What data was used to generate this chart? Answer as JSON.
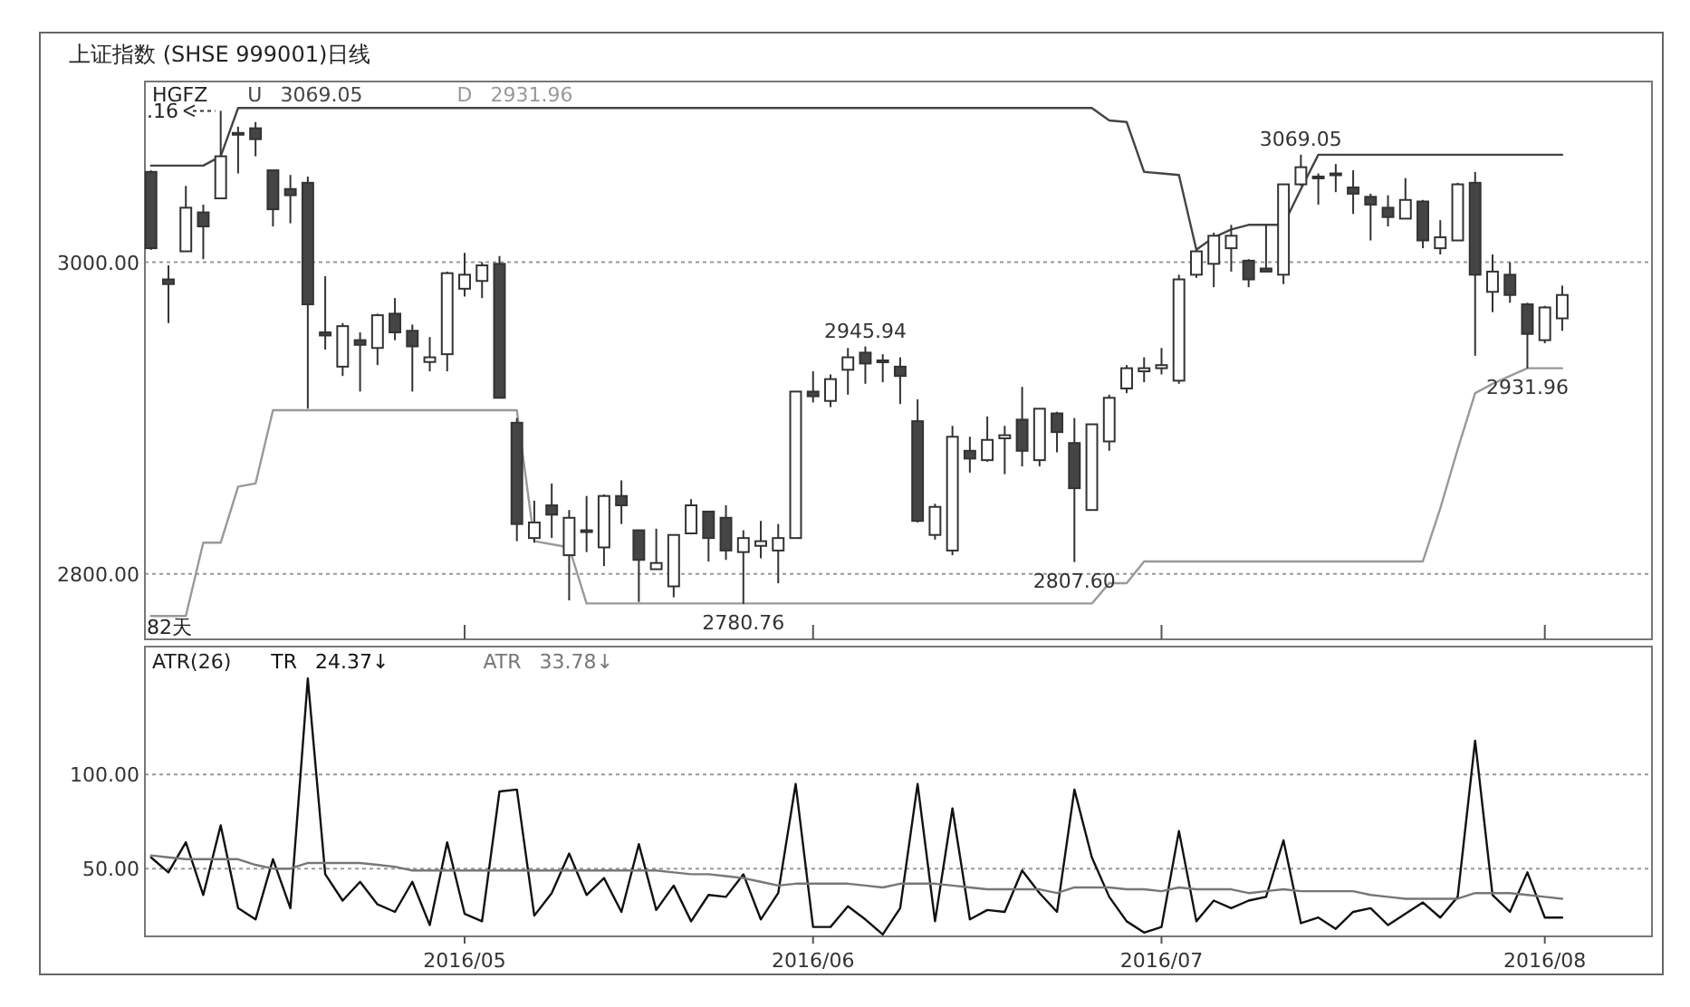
{
  "chart_data": [
    {
      "type": "candlestick",
      "title": "上证指数 (SHSE 999001)日线",
      "legend_title": "HGFZ",
      "legend": "top left",
      "grid": "y",
      "tick_labels": "y",
      "categories": [
        null,
        null,
        null,
        null,
        null,
        null,
        null,
        null,
        null,
        null,
        null,
        null,
        null,
        null,
        null,
        null,
        null,
        null,
        "2016/05",
        null,
        null,
        null,
        null,
        null,
        null,
        null,
        null,
        null,
        null,
        null,
        null,
        null,
        null,
        null,
        null,
        null,
        null,
        null,
        "2016/06",
        null,
        null,
        null,
        null,
        null,
        null,
        null,
        null,
        null,
        null,
        null,
        null,
        null,
        null,
        null,
        null,
        null,
        null,
        null,
        "2016/07",
        null,
        null,
        null,
        null,
        null,
        null,
        null,
        null,
        null,
        null,
        null,
        null,
        null,
        null,
        null,
        null,
        null,
        null,
        null,
        null,
        null,
        "2016/08",
        null
      ],
      "ylim": [
        2758,
        3116
      ],
      "yticks": [
        {
          "value": 3000,
          "label": "3000.00"
        },
        {
          "value": 2800,
          "label": "2800.00"
        }
      ],
      "ohlc": [
        [
          3058,
          3059,
          3008,
          3009
        ],
        [
          2989,
          2998,
          2961,
          2986
        ],
        [
          3007,
          3049,
          3007,
          3035
        ],
        [
          3032,
          3037,
          3002,
          3023
        ],
        [
          3041,
          3097.16,
          3041,
          3068
        ],
        [
          3083,
          3087,
          3057,
          3082
        ],
        [
          3086,
          3090,
          3068,
          3079
        ],
        [
          3059,
          3059,
          3023,
          3034
        ],
        [
          3047,
          3056,
          3025,
          3043
        ],
        [
          3051,
          3055,
          2906,
          2973
        ],
        [
          2955,
          2991,
          2944,
          2953
        ],
        [
          2933,
          2961,
          2927,
          2959
        ],
        [
          2950,
          2955,
          2917,
          2947
        ],
        [
          2945,
          2967,
          2934,
          2966
        ],
        [
          2967,
          2977,
          2950,
          2955
        ],
        [
          2956,
          2960,
          2917,
          2946
        ],
        [
          2936,
          2952,
          2930,
          2939
        ],
        [
          2941,
          2994,
          2930,
          2993
        ],
        [
          2983,
          3006,
          2978,
          2992
        ],
        [
          2988,
          3000,
          2977,
          2998
        ],
        [
          2999,
          3004,
          2913,
          2913
        ],
        [
          2897,
          2900,
          2821,
          2832
        ],
        [
          2823,
          2847,
          2820,
          2833
        ],
        [
          2844,
          2858,
          2823,
          2838
        ],
        [
          2812,
          2841,
          2783,
          2836
        ],
        [
          2827,
          2850,
          2814,
          2828
        ],
        [
          2817,
          2851,
          2805,
          2850
        ],
        [
          2850,
          2860,
          2832,
          2844
        ],
        [
          2828,
          2828,
          2782,
          2809
        ],
        [
          2803,
          2829,
          2803,
          2807
        ],
        [
          2792,
          2825,
          2785,
          2825
        ],
        [
          2826,
          2848,
          2826,
          2844
        ],
        [
          2840,
          2840,
          2808,
          2823
        ],
        [
          2836,
          2844,
          2809,
          2815
        ],
        [
          2814,
          2828,
          2780.76,
          2823
        ],
        [
          2818,
          2834,
          2810,
          2821
        ],
        [
          2815,
          2832,
          2794,
          2823
        ],
        [
          2823,
          2917,
          2823,
          2917
        ],
        [
          2917,
          2930,
          2910,
          2914
        ],
        [
          2911,
          2928,
          2907,
          2925
        ],
        [
          2931,
          2945,
          2915,
          2939
        ],
        [
          2942,
          2945.94,
          2922,
          2935
        ],
        [
          2937,
          2941,
          2923,
          2936
        ],
        [
          2933,
          2939,
          2909,
          2927
        ],
        [
          2898,
          2912,
          2833,
          2834
        ],
        [
          2825,
          2845,
          2822,
          2843
        ],
        [
          2815,
          2895,
          2812,
          2888
        ],
        [
          2879,
          2888,
          2865,
          2874
        ],
        [
          2873,
          2901,
          2872,
          2886
        ],
        [
          2887,
          2895,
          2864,
          2889
        ],
        [
          2899,
          2920,
          2869,
          2879
        ],
        [
          2873,
          2906,
          2869,
          2906
        ],
        [
          2903,
          2904,
          2878,
          2891
        ],
        [
          2884,
          2900,
          2807.6,
          2855
        ],
        [
          2841,
          2896,
          2841,
          2896
        ],
        [
          2885,
          2915,
          2879,
          2913
        ],
        [
          2919,
          2934,
          2916,
          2932
        ],
        [
          2930,
          2939,
          2923,
          2932
        ],
        [
          2932,
          2945,
          2928,
          2934
        ],
        [
          2924,
          2992,
          2922,
          2989
        ],
        [
          2992,
          3008,
          2990,
          3007
        ],
        [
          2999,
          3019,
          2984,
          3017
        ],
        [
          3009,
          3024,
          2994,
          3017
        ],
        [
          3001,
          3002,
          2984,
          2989
        ],
        [
          2996,
          3024,
          2994,
          2994
        ],
        [
          2992,
          3050,
          2986,
          3050
        ],
        [
          3050,
          3069.05,
          3049,
          3061
        ],
        [
          3055,
          3057,
          3037,
          3054
        ],
        [
          3056,
          3063,
          3045,
          3057
        ],
        [
          3048,
          3059,
          3031,
          3044
        ],
        [
          3042,
          3044,
          3014,
          3037
        ],
        [
          3035,
          3043,
          3023,
          3029
        ],
        [
          3028,
          3054,
          3028,
          3040
        ],
        [
          3039,
          3040,
          3009,
          3014
        ],
        [
          3009,
          3027,
          3005,
          3016
        ],
        [
          3014,
          3051,
          3014,
          3050
        ],
        [
          3051,
          3058,
          2940,
          2992
        ],
        [
          2981,
          3005,
          2968,
          2994
        ],
        [
          2992,
          3000,
          2974,
          2979
        ],
        [
          2973,
          2974,
          2931.96,
          2954
        ],
        [
          2950,
          2972,
          2948,
          2971
        ],
        [
          2964,
          2985,
          2956,
          2979
        ]
      ],
      "series": [
        {
          "name": "U",
          "type": "line",
          "color": "#444444",
          "values": [
            3062,
            3062,
            3062,
            3062,
            3068,
            3099,
            3099,
            3099,
            3099,
            3099,
            3099,
            3099,
            3099,
            3099,
            3099,
            3099,
            3099,
            3099,
            3099,
            3099,
            3099,
            3099,
            3099,
            3099,
            3099,
            3099,
            3099,
            3099,
            3099,
            3099,
            3099,
            3099,
            3099,
            3099,
            3099,
            3099,
            3099,
            3099,
            3099,
            3099,
            3099,
            3099,
            3099,
            3099,
            3099,
            3099,
            3099,
            3099,
            3099,
            3099,
            3099,
            3099,
            3099,
            3099,
            3099,
            3091,
            3090,
            3058,
            3057,
            3056,
            3008,
            3016,
            3021,
            3024,
            3024,
            3024,
            3047,
            3069,
            3069,
            3069,
            3069,
            3069,
            3069,
            3069,
            3069,
            3069,
            3069,
            3069,
            3069,
            3069,
            3069,
            3069
          ]
        },
        {
          "name": "D",
          "type": "line",
          "color": "#999999",
          "values": [
            2773,
            2773,
            2773,
            2820,
            2820,
            2856,
            2858,
            2905,
            2905,
            2905,
            2905,
            2905,
            2905,
            2905,
            2905,
            2905,
            2905,
            2905,
            2905,
            2905,
            2905,
            2905,
            2821,
            2819,
            2817,
            2781,
            2781,
            2781,
            2781,
            2781,
            2781,
            2781,
            2781,
            2781,
            2781,
            2781,
            2781,
            2781,
            2781,
            2781,
            2781,
            2781,
            2781,
            2781,
            2781,
            2781,
            2781,
            2781,
            2781,
            2781,
            2781,
            2781,
            2781,
            2781,
            2781,
            2794,
            2794,
            2808,
            2808,
            2808,
            2808,
            2808,
            2808,
            2808,
            2808,
            2808,
            2808,
            2808,
            2808,
            2808,
            2808,
            2808,
            2808,
            2808,
            2842,
            2880,
            2916,
            2922,
            2927,
            2932,
            2932,
            2932
          ]
        }
      ],
      "annotations": [
        "3069.05",
        "2931.96",
        ".16",
        "82天",
        {
          "text": "3069.05",
          "y": 3069.05
        },
        {
          "text": "2945.94",
          "y": 2945.94
        },
        {
          "text": "2780.76",
          "y": 2780.76
        },
        {
          "text": "2807.60",
          "y": 2807.6
        },
        {
          "text": "2931.96",
          "y": 2931.96
        }
      ]
    },
    {
      "type": "line",
      "legend_title": "ATR(26)",
      "legend": "top left",
      "grid": "y",
      "categories": [
        null,
        null,
        null,
        null,
        null,
        null,
        null,
        null,
        null,
        null,
        null,
        null,
        null,
        null,
        null,
        null,
        null,
        null,
        "2016/05",
        null,
        null,
        null,
        null,
        null,
        null,
        null,
        null,
        null,
        null,
        null,
        null,
        null,
        null,
        null,
        null,
        null,
        null,
        null,
        "2016/06",
        null,
        null,
        null,
        null,
        null,
        null,
        null,
        null,
        null,
        null,
        null,
        null,
        null,
        null,
        null,
        null,
        null,
        null,
        null,
        "2016/07",
        null,
        null,
        null,
        null,
        null,
        null,
        null,
        null,
        null,
        null,
        null,
        null,
        null,
        null,
        null,
        null,
        null,
        null,
        null,
        null,
        null,
        "2016/08",
        null
      ],
      "ylim": [
        14,
        168
      ],
      "yticks": [
        {
          "value": 100,
          "label": "100.00"
        },
        {
          "value": 50,
          "label": "50.00"
        }
      ],
      "series": [
        {
          "name": "TR",
          "color": "#111111",
          "values": [
            56,
            48,
            64,
            36,
            73,
            29,
            23,
            55,
            29,
            151,
            47,
            33,
            43,
            31,
            27,
            43,
            20,
            64,
            26,
            22,
            91,
            92,
            25,
            37,
            58,
            36,
            45,
            27,
            63,
            28,
            41,
            22,
            36,
            35,
            47,
            23,
            37,
            95,
            19,
            19,
            30,
            23,
            15,
            29,
            95,
            22,
            82,
            23,
            28,
            27,
            49,
            37,
            27,
            92,
            56,
            35,
            22,
            16,
            19,
            70,
            22,
            33,
            29,
            33,
            35,
            65,
            21,
            24,
            18,
            27,
            29,
            20,
            26,
            32,
            24,
            35,
            118,
            36,
            27,
            48,
            24,
            24
          ]
        },
        {
          "name": "ATR",
          "color": "#777777",
          "values": [
            57,
            56,
            55,
            55,
            55,
            55,
            52,
            50,
            50,
            53,
            53,
            53,
            53,
            52,
            51,
            49,
            49,
            49,
            49,
            49,
            49,
            49,
            49,
            49,
            49,
            49,
            49,
            49,
            49,
            49,
            48,
            47,
            47,
            46,
            45,
            43,
            41,
            42,
            42,
            42,
            42,
            41,
            40,
            42,
            42,
            42,
            41,
            40,
            39,
            39,
            39,
            39,
            37,
            40,
            40,
            40,
            39,
            39,
            38,
            40,
            39,
            39,
            39,
            37,
            38,
            39,
            38,
            38,
            38,
            38,
            36,
            35,
            34,
            34,
            34,
            34,
            37,
            37,
            37,
            36,
            35,
            34
          ]
        }
      ],
      "annotations": [
        "24.37↓",
        "33.78↓"
      ]
    }
  ]
}
